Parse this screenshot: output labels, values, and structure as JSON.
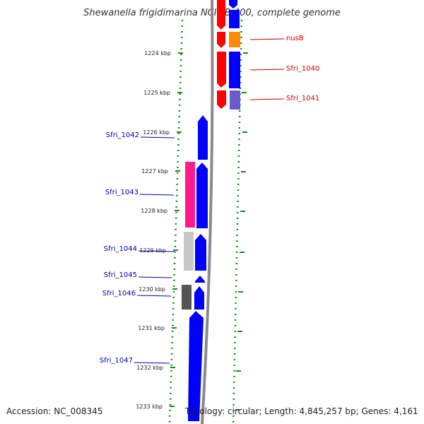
{
  "title": "Shewanella frigidimarina NCIMB 400, complete genome",
  "footer": {
    "accession": "Accession: NC_008345",
    "topology": "Topology: circular; Length: 4,845,257 bp; Genes: 4,161"
  },
  "ticks": [
    "1224 kbp",
    "1225 kbp",
    "1226 kbp",
    "1227 kbp",
    "1228 kbp",
    "1229 kbp",
    "1230 kbp",
    "1231 kbp",
    "1232 kbp",
    "1233 kbp"
  ],
  "right_labels": [
    "nusB",
    "Sfri_1040",
    "Sfri_1041"
  ],
  "left_labels": [
    "Sfri_1042",
    "Sfri_1043",
    "Sfri_1044",
    "Sfri_1045",
    "Sfri_1046",
    "Sfri_1047"
  ],
  "colors": {
    "forward": "#ff0000",
    "reverse": "#0000ff",
    "orange": "#ff8c00",
    "purple": "#6a5acd",
    "pink": "#ff1a8c",
    "lightgray": "#c8c8c8",
    "darkgray": "#555555",
    "axis": "#1a8a1a",
    "backbone": "#8a8a8a",
    "label_red": "#cc0000",
    "label_blue": "#0000aa"
  }
}
